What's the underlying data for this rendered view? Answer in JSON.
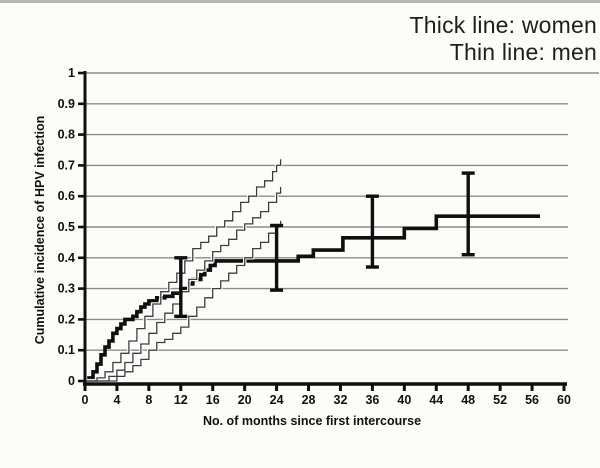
{
  "page": {
    "background": "#fcfcf9",
    "top_border_color": "#b6b9ab"
  },
  "legend": {
    "line1": "Thick line: women",
    "line2": "Thin line: men"
  },
  "chart_data": {
    "type": "line",
    "subtype": "cumulative-incidence-step-curves",
    "title": "",
    "xlabel": "No. of months since first intercourse",
    "ylabel": "Cumulative incidence of HPV infection",
    "xlim": [
      0,
      60
    ],
    "ylim": [
      0,
      1
    ],
    "grid": true,
    "legend_position": "top-right",
    "x_ticks": [
      0,
      4,
      8,
      12,
      16,
      20,
      24,
      28,
      32,
      36,
      40,
      44,
      48,
      52,
      56,
      60
    ],
    "x_tick_labels": [
      "0",
      "4",
      "8",
      "12",
      "16",
      "20",
      "24",
      "28",
      "32",
      "36",
      "40",
      "44",
      "48",
      "52",
      "56",
      "60"
    ],
    "y_ticks": [
      0,
      0.1,
      0.2,
      0.3,
      0.4,
      0.5,
      0.6,
      0.7,
      0.8,
      0.9,
      1
    ],
    "y_tick_labels": [
      "0",
      "0.1",
      "0.2",
      "0.3",
      "0.4",
      "0.5",
      "0.6",
      "0.7",
      "0.8",
      "0.9",
      "1"
    ],
    "colors": {
      "line": "#0f0f0f",
      "thin_line": "#3c3c3c",
      "grid": "#8c8c8c"
    },
    "series": [
      {
        "name": "women",
        "style": "thick",
        "points": [
          [
            0,
            0
          ],
          [
            0.5,
            0.01
          ],
          [
            1,
            0.03
          ],
          [
            1.5,
            0.055
          ],
          [
            2,
            0.085
          ],
          [
            2.5,
            0.11
          ],
          [
            3,
            0.13
          ],
          [
            3.5,
            0.155
          ],
          [
            4,
            0.17
          ],
          [
            4.5,
            0.185
          ],
          [
            5,
            0.2
          ],
          [
            6,
            0.21
          ],
          [
            6.5,
            0.225
          ],
          [
            7,
            0.24
          ],
          [
            7.5,
            0.25
          ],
          [
            8,
            0.26
          ],
          [
            9,
            0.27
          ],
          [
            10,
            0.275
          ],
          [
            11,
            0.285
          ],
          [
            12,
            0.3
          ],
          [
            13,
            0.315
          ],
          [
            13.5,
            0.33
          ],
          [
            14.5,
            0.345
          ],
          [
            15,
            0.36
          ],
          [
            15.7,
            0.375
          ],
          [
            16.3,
            0.39
          ],
          [
            26.7,
            0.405
          ],
          [
            28.6,
            0.425
          ],
          [
            32.3,
            0.465
          ],
          [
            40,
            0.495
          ],
          [
            44,
            0.535
          ],
          [
            57,
            0.535
          ]
        ]
      },
      {
        "name": "men",
        "style": "thin",
        "points": [
          [
            0,
            0
          ],
          [
            2,
            0
          ],
          [
            3,
            0.015
          ],
          [
            4,
            0.035
          ],
          [
            5,
            0.06
          ],
          [
            6,
            0.09
          ],
          [
            7,
            0.12
          ],
          [
            8,
            0.155
          ],
          [
            9,
            0.19
          ],
          [
            10,
            0.22
          ],
          [
            11,
            0.25
          ],
          [
            12,
            0.29
          ],
          [
            13,
            0.33
          ],
          [
            14,
            0.36
          ],
          [
            15,
            0.39
          ],
          [
            16,
            0.42
          ],
          [
            17,
            0.44
          ],
          [
            18,
            0.46
          ],
          [
            19,
            0.49
          ],
          [
            20,
            0.51
          ],
          [
            21,
            0.53
          ],
          [
            22,
            0.55
          ],
          [
            23,
            0.58
          ],
          [
            24,
            0.61
          ],
          [
            24.5,
            0.63
          ]
        ]
      },
      {
        "name": "men-upper-ci",
        "style": "thin",
        "points": [
          [
            0,
            0
          ],
          [
            1.5,
            0.01
          ],
          [
            2.5,
            0.03
          ],
          [
            3.5,
            0.06
          ],
          [
            4.5,
            0.09
          ],
          [
            5.5,
            0.13
          ],
          [
            6.5,
            0.17
          ],
          [
            7.5,
            0.21
          ],
          [
            8.5,
            0.25
          ],
          [
            9.5,
            0.29
          ],
          [
            10.5,
            0.32
          ],
          [
            11.5,
            0.35
          ],
          [
            12.5,
            0.39
          ],
          [
            13.5,
            0.43
          ],
          [
            14.5,
            0.45
          ],
          [
            15.5,
            0.47
          ],
          [
            16.5,
            0.5
          ],
          [
            17.5,
            0.52
          ],
          [
            18.5,
            0.55
          ],
          [
            19.5,
            0.58
          ],
          [
            20.5,
            0.6
          ],
          [
            21.5,
            0.63
          ],
          [
            22.5,
            0.65
          ],
          [
            23.5,
            0.68
          ],
          [
            24,
            0.7
          ],
          [
            24.5,
            0.72
          ]
        ]
      },
      {
        "name": "men-lower-ci",
        "style": "thin",
        "points": [
          [
            0,
            0
          ],
          [
            3,
            0
          ],
          [
            4,
            0.015
          ],
          [
            5,
            0.03
          ],
          [
            6,
            0.05
          ],
          [
            7,
            0.07
          ],
          [
            8,
            0.1
          ],
          [
            9,
            0.125
          ],
          [
            10,
            0.135
          ],
          [
            11,
            0.155
          ],
          [
            12,
            0.175
          ],
          [
            13,
            0.21
          ],
          [
            14,
            0.24
          ],
          [
            15,
            0.27
          ],
          [
            16,
            0.3
          ],
          [
            17,
            0.325
          ],
          [
            18,
            0.35
          ],
          [
            19,
            0.375
          ],
          [
            20,
            0.4
          ],
          [
            21,
            0.43
          ],
          [
            22,
            0.45
          ],
          [
            23,
            0.48
          ],
          [
            24,
            0.5
          ],
          [
            24.5,
            0.52
          ]
        ]
      }
    ],
    "error_bars": {
      "series": "women",
      "values": [
        {
          "x": 12,
          "low": 0.21,
          "high": 0.4
        },
        {
          "x": 24,
          "low": 0.295,
          "high": 0.505
        },
        {
          "x": 36,
          "low": 0.37,
          "high": 0.6
        },
        {
          "x": 48,
          "low": 0.41,
          "high": 0.675
        }
      ]
    }
  }
}
